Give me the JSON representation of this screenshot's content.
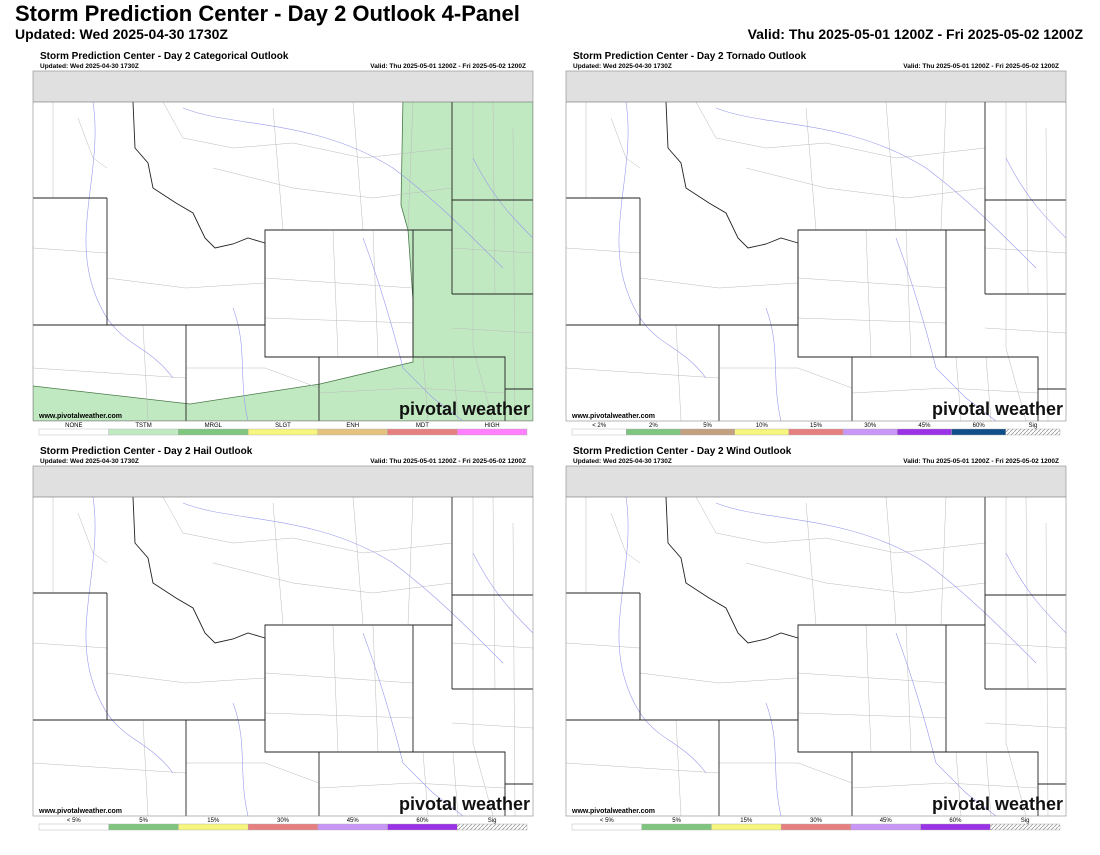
{
  "header": {
    "title": "Storm Prediction Center - Day 2 Outlook 4-Panel",
    "updated": "Updated: Wed 2025-04-30 1730Z",
    "valid": "Valid: Thu 2025-05-01 1200Z - Fri 2025-05-02 1200Z"
  },
  "panels": [
    {
      "title": "Storm Prediction Center - Day 2 Categorical Outlook",
      "updated": "Updated: Wed 2025-04-30 1730Z",
      "valid": "Valid: Thu 2025-05-01 1200Z - Fri 2025-05-02 1200Z",
      "site": "www.pivotalweather.com",
      "logo": "pivotal weather",
      "legend": [
        {
          "label": "NONE",
          "color": "#ffffff"
        },
        {
          "label": "TSTM",
          "color": "#c1e9c1"
        },
        {
          "label": "MRGL",
          "color": "#7fc57f"
        },
        {
          "label": "SLGT",
          "color": "#f6f67f"
        },
        {
          "label": "ENH",
          "color": "#e6c27f"
        },
        {
          "label": "MDT",
          "color": "#e67f7f"
        },
        {
          "label": "HIGH",
          "color": "#ff7fff"
        }
      ]
    },
    {
      "title": "Storm Prediction Center - Day 2 Tornado Outlook",
      "updated": "Updated: Wed 2025-04-30 1730Z",
      "valid": "Valid: Thu 2025-05-01 1200Z - Fri 2025-05-02 1200Z",
      "site": "www.pivotalweather.com",
      "logo": "pivotal weather",
      "legend": [
        {
          "label": "< 2%",
          "color": "#ffffff"
        },
        {
          "label": "2%",
          "color": "#7fc57f"
        },
        {
          "label": "5%",
          "color": "#c1a17f"
        },
        {
          "label": "10%",
          "color": "#f6f67f"
        },
        {
          "label": "15%",
          "color": "#e67f7f"
        },
        {
          "label": "30%",
          "color": "#c896f7"
        },
        {
          "label": "45%",
          "color": "#9a32e6"
        },
        {
          "label": "60%",
          "color": "#104e8b"
        },
        {
          "label": "Sig"
        }
      ]
    },
    {
      "title": "Storm Prediction Center - Day 2 Hail Outlook",
      "updated": "Updated: Wed 2025-04-30 1730Z",
      "valid": "Valid: Thu 2025-05-01 1200Z - Fri 2025-05-02 1200Z",
      "site": "www.pivotalweather.com",
      "logo": "pivotal weather",
      "legend": [
        {
          "label": "< 5%",
          "color": "#ffffff"
        },
        {
          "label": "5%",
          "color": "#7fc57f"
        },
        {
          "label": "15%",
          "color": "#f6f67f"
        },
        {
          "label": "30%",
          "color": "#e67f7f"
        },
        {
          "label": "45%",
          "color": "#c896f7"
        },
        {
          "label": "60%",
          "color": "#9a32e6"
        },
        {
          "label": "Sig"
        }
      ]
    },
    {
      "title": "Storm Prediction Center - Day 2 Wind Outlook",
      "updated": "Updated: Wed 2025-04-30 1730Z",
      "valid": "Valid: Thu 2025-05-01 1200Z - Fri 2025-05-02 1200Z",
      "site": "www.pivotalweather.com",
      "logo": "pivotal weather",
      "legend": [
        {
          "label": "< 5%",
          "color": "#ffffff"
        },
        {
          "label": "5%",
          "color": "#7fc57f"
        },
        {
          "label": "15%",
          "color": "#f6f67f"
        },
        {
          "label": "30%",
          "color": "#e67f7f"
        },
        {
          "label": "45%",
          "color": "#c896f7"
        },
        {
          "label": "60%",
          "color": "#9a32e6"
        },
        {
          "label": "Sig"
        }
      ]
    }
  ]
}
